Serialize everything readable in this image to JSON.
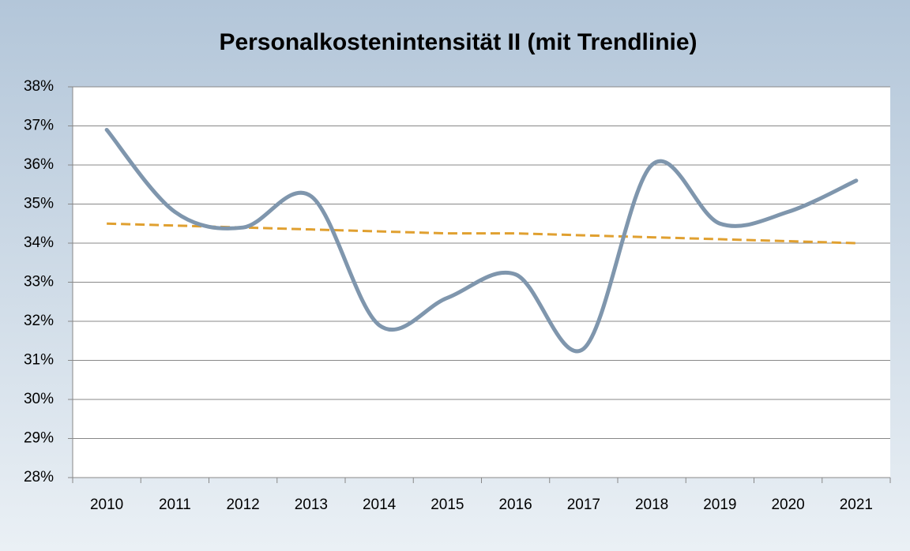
{
  "chart_data": {
    "type": "line",
    "title": "Personalkostenintensität II (mit Trendlinie)",
    "categories": [
      "2010",
      "2011",
      "2012",
      "2013",
      "2014",
      "2015",
      "2016",
      "2017",
      "2018",
      "2019",
      "2020",
      "2021"
    ],
    "series": [
      {
        "color": "#7f96ad",
        "values": [
          36.9,
          34.8,
          34.4,
          35.2,
          31.9,
          32.6,
          33.2,
          31.3,
          36.0,
          34.5,
          34.8,
          35.6
        ]
      }
    ],
    "trendline": {
      "color": "#e0a030",
      "values": [
        34.5,
        34.45,
        34.4,
        34.35,
        34.3,
        34.25,
        34.25,
        34.2,
        34.15,
        34.1,
        34.05,
        34.0
      ]
    },
    "ylim": [
      28,
      38
    ],
    "yticks": [
      {
        "value": 28,
        "label": "28%"
      },
      {
        "value": 29,
        "label": "29%"
      },
      {
        "value": 30,
        "label": "30%"
      },
      {
        "value": 31,
        "label": "31%"
      },
      {
        "value": 32,
        "label": "32%"
      },
      {
        "value": 33,
        "label": "33%"
      },
      {
        "value": 34,
        "label": "34%"
      },
      {
        "value": 35,
        "label": "35%"
      },
      {
        "value": 36,
        "label": "36%"
      },
      {
        "value": 37,
        "label": "37%"
      },
      {
        "value": 38,
        "label": "38%"
      }
    ],
    "grid": true
  }
}
